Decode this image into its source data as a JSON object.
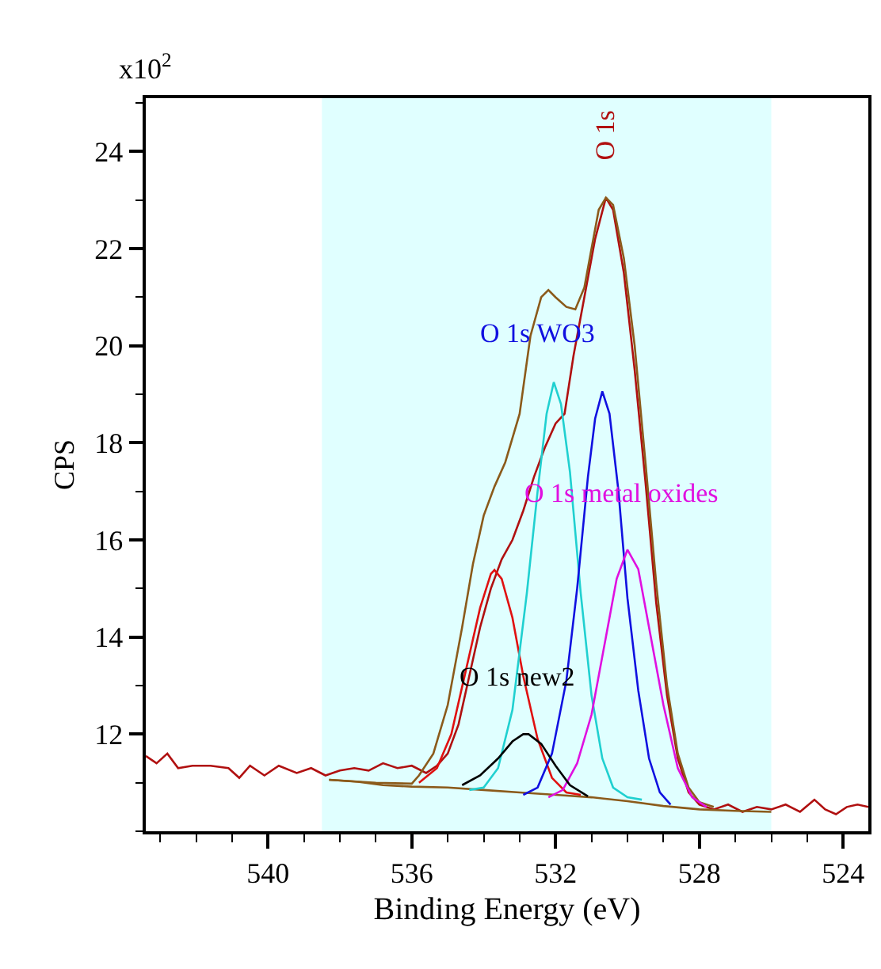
{
  "chart_data": {
    "type": "line",
    "xlabel": "Binding Energy (eV)",
    "ylabel": "CPS",
    "annotations": [
      "x10$^{2}$"
    ],
    "xlim": [
      543.4,
      523.3
    ],
    "xticks": [
      540,
      536,
      532,
      528,
      524
    ],
    "ylim": [
      10.0,
      25.1
    ],
    "yticks": [
      12,
      14,
      16,
      18,
      20,
      22,
      24
    ],
    "grid": false,
    "marker": "none",
    "line_style": "solid",
    "bands": [
      {
        "axis": "x",
        "from": 538.5,
        "to": 526.0,
        "color": "#e0ffff"
      }
    ],
    "series": [
      {
        "name": "O 1s",
        "color": "#b01010",
        "x": [
          543.4,
          543.1,
          542.8,
          542.5,
          542.1,
          541.6,
          541.1,
          540.8,
          540.5,
          540.1,
          539.7,
          539.2,
          538.8,
          538.4,
          538.0,
          537.6,
          537.2,
          536.8,
          536.4,
          536.0,
          535.6,
          535.3,
          535.0,
          534.7,
          534.4,
          534.1,
          533.8,
          533.5,
          533.2,
          532.9,
          532.6,
          532.3,
          532.0,
          531.75,
          531.5,
          531.2,
          530.9,
          530.6,
          530.4,
          530.1,
          529.8,
          529.5,
          529.2,
          528.9,
          528.6,
          528.3,
          528.0,
          527.6,
          527.2,
          526.8,
          526.4,
          526.0,
          525.6,
          525.2,
          524.8,
          524.5,
          524.2,
          523.9,
          523.6,
          523.3
        ],
        "values": [
          11.55,
          11.4,
          11.6,
          11.3,
          11.35,
          11.35,
          11.3,
          11.1,
          11.35,
          11.15,
          11.35,
          11.2,
          11.3,
          11.15,
          11.25,
          11.3,
          11.25,
          11.4,
          11.3,
          11.35,
          11.2,
          11.35,
          11.6,
          12.2,
          13.2,
          14.2,
          15.0,
          15.6,
          16.0,
          16.6,
          17.3,
          17.9,
          18.4,
          18.6,
          19.8,
          21.0,
          22.2,
          23.05,
          22.8,
          21.5,
          19.5,
          17.2,
          14.7,
          12.8,
          11.5,
          10.8,
          10.55,
          10.45,
          10.55,
          10.4,
          10.5,
          10.45,
          10.55,
          10.4,
          10.65,
          10.45,
          10.35,
          10.5,
          10.55,
          10.5
        ]
      },
      {
        "color": "#8b5a1a",
        "x": [
          538.3,
          537.5,
          536.8,
          536.0,
          535.0,
          534.0,
          533.0,
          532.0,
          531.0,
          530.0,
          529.0,
          528.0,
          527.0,
          526.0
        ],
        "values": [
          11.06,
          11.02,
          10.95,
          10.92,
          10.9,
          10.85,
          10.8,
          10.75,
          10.7,
          10.62,
          10.52,
          10.45,
          10.42,
          10.4
        ]
      },
      {
        "color": "#8b5a1a",
        "x": [
          538.3,
          537.0,
          536.0,
          535.8,
          535.4,
          535.0,
          534.6,
          534.3,
          534.0,
          533.7,
          533.4,
          533.0,
          532.7,
          532.4,
          532.2,
          532.0,
          531.7,
          531.45,
          531.2,
          531.0,
          530.8,
          530.6,
          530.4,
          530.1,
          529.8,
          529.5,
          529.2,
          528.9,
          528.6,
          528.3,
          528.0,
          527.6
        ],
        "values": [
          11.06,
          11.0,
          10.98,
          11.15,
          11.6,
          12.6,
          14.2,
          15.5,
          16.5,
          17.1,
          17.6,
          18.6,
          20.2,
          21.0,
          21.15,
          21.0,
          20.8,
          20.75,
          21.2,
          22.0,
          22.8,
          23.05,
          22.9,
          21.8,
          20.0,
          17.6,
          15.1,
          13.0,
          11.6,
          10.9,
          10.6,
          10.5
        ]
      },
      {
        "color": "#e01010",
        "x": [
          535.8,
          535.3,
          534.9,
          534.5,
          534.1,
          533.8,
          533.7,
          533.5,
          533.2,
          532.9,
          532.5,
          532.1,
          531.7,
          531.3
        ],
        "values": [
          11.0,
          11.3,
          12.0,
          13.3,
          14.6,
          15.3,
          15.38,
          15.2,
          14.4,
          13.2,
          11.9,
          11.1,
          10.8,
          10.75
        ]
      },
      {
        "color": "#20d0d0",
        "x": [
          534.4,
          534.0,
          533.6,
          533.2,
          532.8,
          532.5,
          532.25,
          532.05,
          531.85,
          531.6,
          531.3,
          531.0,
          530.7,
          530.4,
          530.0,
          529.6
        ],
        "values": [
          10.85,
          10.9,
          11.3,
          12.5,
          14.9,
          17.0,
          18.6,
          19.25,
          18.8,
          17.4,
          14.9,
          12.8,
          11.5,
          10.9,
          10.7,
          10.65
        ]
      },
      {
        "name": "O 1s WO3",
        "color": "#1010e0",
        "x": [
          532.9,
          532.5,
          532.1,
          531.7,
          531.4,
          531.1,
          530.9,
          530.7,
          530.5,
          530.25,
          530.0,
          529.7,
          529.4,
          529.1,
          528.8
        ],
        "values": [
          10.75,
          10.9,
          11.6,
          13.1,
          15.0,
          17.3,
          18.5,
          19.06,
          18.6,
          17.0,
          14.8,
          12.9,
          11.5,
          10.8,
          10.55
        ]
      },
      {
        "name": "O 1s metal oxides",
        "color": "#e010e0",
        "x": [
          532.2,
          531.8,
          531.4,
          531.0,
          530.6,
          530.3,
          530.0,
          529.7,
          529.4,
          529.0,
          528.6,
          528.2,
          527.8
        ],
        "values": [
          10.7,
          10.85,
          11.4,
          12.4,
          14.0,
          15.2,
          15.8,
          15.4,
          14.2,
          12.6,
          11.3,
          10.7,
          10.5
        ]
      },
      {
        "name": "O 1s new2",
        "color": "#000000",
        "x": [
          534.6,
          534.1,
          533.6,
          533.2,
          532.9,
          532.75,
          532.4,
          532.0,
          531.6,
          531.1
        ],
        "values": [
          10.95,
          11.15,
          11.5,
          11.85,
          12.0,
          12.0,
          11.8,
          11.35,
          10.95,
          10.72
        ]
      }
    ]
  }
}
